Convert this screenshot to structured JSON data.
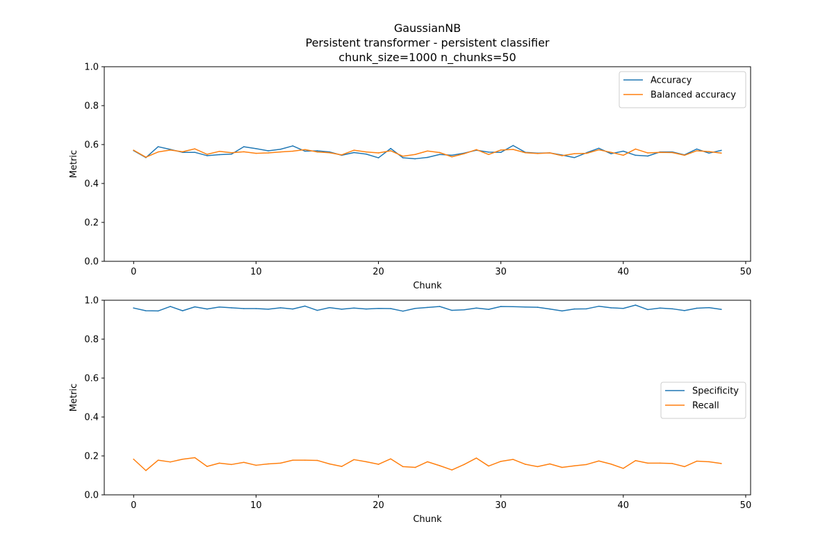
{
  "figure": {
    "title_lines": [
      "GaussianNB",
      "Persistent transformer - persistent classifier",
      "chunk_size=1000 n_chunks=50"
    ]
  },
  "chart_data": [
    {
      "type": "line",
      "xlabel": "Chunk",
      "ylabel": "Metric",
      "xlim": [
        -2.4,
        50.4
      ],
      "ylim": [
        0,
        1.0
      ],
      "xticks": [
        0,
        10,
        20,
        30,
        40,
        50
      ],
      "yticks": [
        0.0,
        0.2,
        0.4,
        0.6,
        0.8,
        1.0
      ],
      "legend_position": "upper right",
      "x": [
        0,
        1,
        2,
        3,
        4,
        5,
        6,
        7,
        8,
        9,
        10,
        11,
        12,
        13,
        14,
        15,
        16,
        17,
        18,
        19,
        20,
        21,
        22,
        23,
        24,
        25,
        26,
        27,
        28,
        29,
        30,
        31,
        32,
        33,
        34,
        35,
        36,
        37,
        38,
        39,
        40,
        41,
        42,
        43,
        44,
        45,
        46,
        47,
        48
      ],
      "series": [
        {
          "name": "Accuracy",
          "color": "#1f77b4",
          "values": [
            0.569,
            0.533,
            0.589,
            0.575,
            0.56,
            0.56,
            0.543,
            0.548,
            0.551,
            0.589,
            0.579,
            0.568,
            0.576,
            0.593,
            0.566,
            0.568,
            0.562,
            0.545,
            0.559,
            0.551,
            0.532,
            0.58,
            0.532,
            0.527,
            0.534,
            0.549,
            0.545,
            0.556,
            0.571,
            0.561,
            0.56,
            0.595,
            0.56,
            0.556,
            0.557,
            0.546,
            0.533,
            0.558,
            0.581,
            0.553,
            0.566,
            0.545,
            0.541,
            0.562,
            0.562,
            0.547,
            0.577,
            0.556,
            0.57
          ]
        },
        {
          "name": "Balanced accuracy",
          "color": "#ff7f0e",
          "values": [
            0.571,
            0.535,
            0.562,
            0.572,
            0.563,
            0.578,
            0.55,
            0.565,
            0.558,
            0.563,
            0.555,
            0.557,
            0.562,
            0.566,
            0.574,
            0.562,
            0.558,
            0.547,
            0.571,
            0.562,
            0.557,
            0.568,
            0.54,
            0.549,
            0.567,
            0.559,
            0.537,
            0.553,
            0.574,
            0.549,
            0.572,
            0.575,
            0.558,
            0.554,
            0.557,
            0.543,
            0.553,
            0.555,
            0.573,
            0.56,
            0.545,
            0.577,
            0.557,
            0.56,
            0.559,
            0.545,
            0.568,
            0.564,
            0.556
          ]
        }
      ]
    },
    {
      "type": "line",
      "xlabel": "Chunk",
      "ylabel": "Metric",
      "xlim": [
        -2.4,
        50.4
      ],
      "ylim": [
        0,
        1.0
      ],
      "xticks": [
        0,
        10,
        20,
        30,
        40,
        50
      ],
      "yticks": [
        0.0,
        0.2,
        0.4,
        0.6,
        0.8,
        1.0
      ],
      "legend_position": "center right",
      "x": [
        0,
        1,
        2,
        3,
        4,
        5,
        6,
        7,
        8,
        9,
        10,
        11,
        12,
        13,
        14,
        15,
        16,
        17,
        18,
        19,
        20,
        21,
        22,
        23,
        24,
        25,
        26,
        27,
        28,
        29,
        30,
        31,
        32,
        33,
        34,
        35,
        36,
        37,
        38,
        39,
        40,
        41,
        42,
        43,
        44,
        45,
        46,
        47,
        48
      ],
      "series": [
        {
          "name": "Specificity",
          "color": "#1f77b4",
          "values": [
            0.96,
            0.946,
            0.945,
            0.968,
            0.946,
            0.966,
            0.955,
            0.965,
            0.961,
            0.957,
            0.957,
            0.954,
            0.961,
            0.955,
            0.97,
            0.948,
            0.962,
            0.954,
            0.96,
            0.955,
            0.958,
            0.957,
            0.944,
            0.958,
            0.963,
            0.968,
            0.948,
            0.951,
            0.96,
            0.953,
            0.968,
            0.967,
            0.965,
            0.964,
            0.955,
            0.945,
            0.955,
            0.956,
            0.969,
            0.961,
            0.958,
            0.975,
            0.952,
            0.96,
            0.956,
            0.947,
            0.959,
            0.962,
            0.953
          ]
        },
        {
          "name": "Recall",
          "color": "#ff7f0e",
          "values": [
            0.183,
            0.125,
            0.178,
            0.169,
            0.183,
            0.191,
            0.146,
            0.163,
            0.156,
            0.167,
            0.152,
            0.159,
            0.163,
            0.178,
            0.178,
            0.177,
            0.159,
            0.146,
            0.181,
            0.17,
            0.157,
            0.185,
            0.145,
            0.141,
            0.17,
            0.15,
            0.128,
            0.156,
            0.189,
            0.148,
            0.172,
            0.182,
            0.157,
            0.145,
            0.159,
            0.141,
            0.149,
            0.156,
            0.174,
            0.158,
            0.136,
            0.176,
            0.163,
            0.163,
            0.161,
            0.145,
            0.173,
            0.17,
            0.161
          ]
        }
      ]
    }
  ]
}
